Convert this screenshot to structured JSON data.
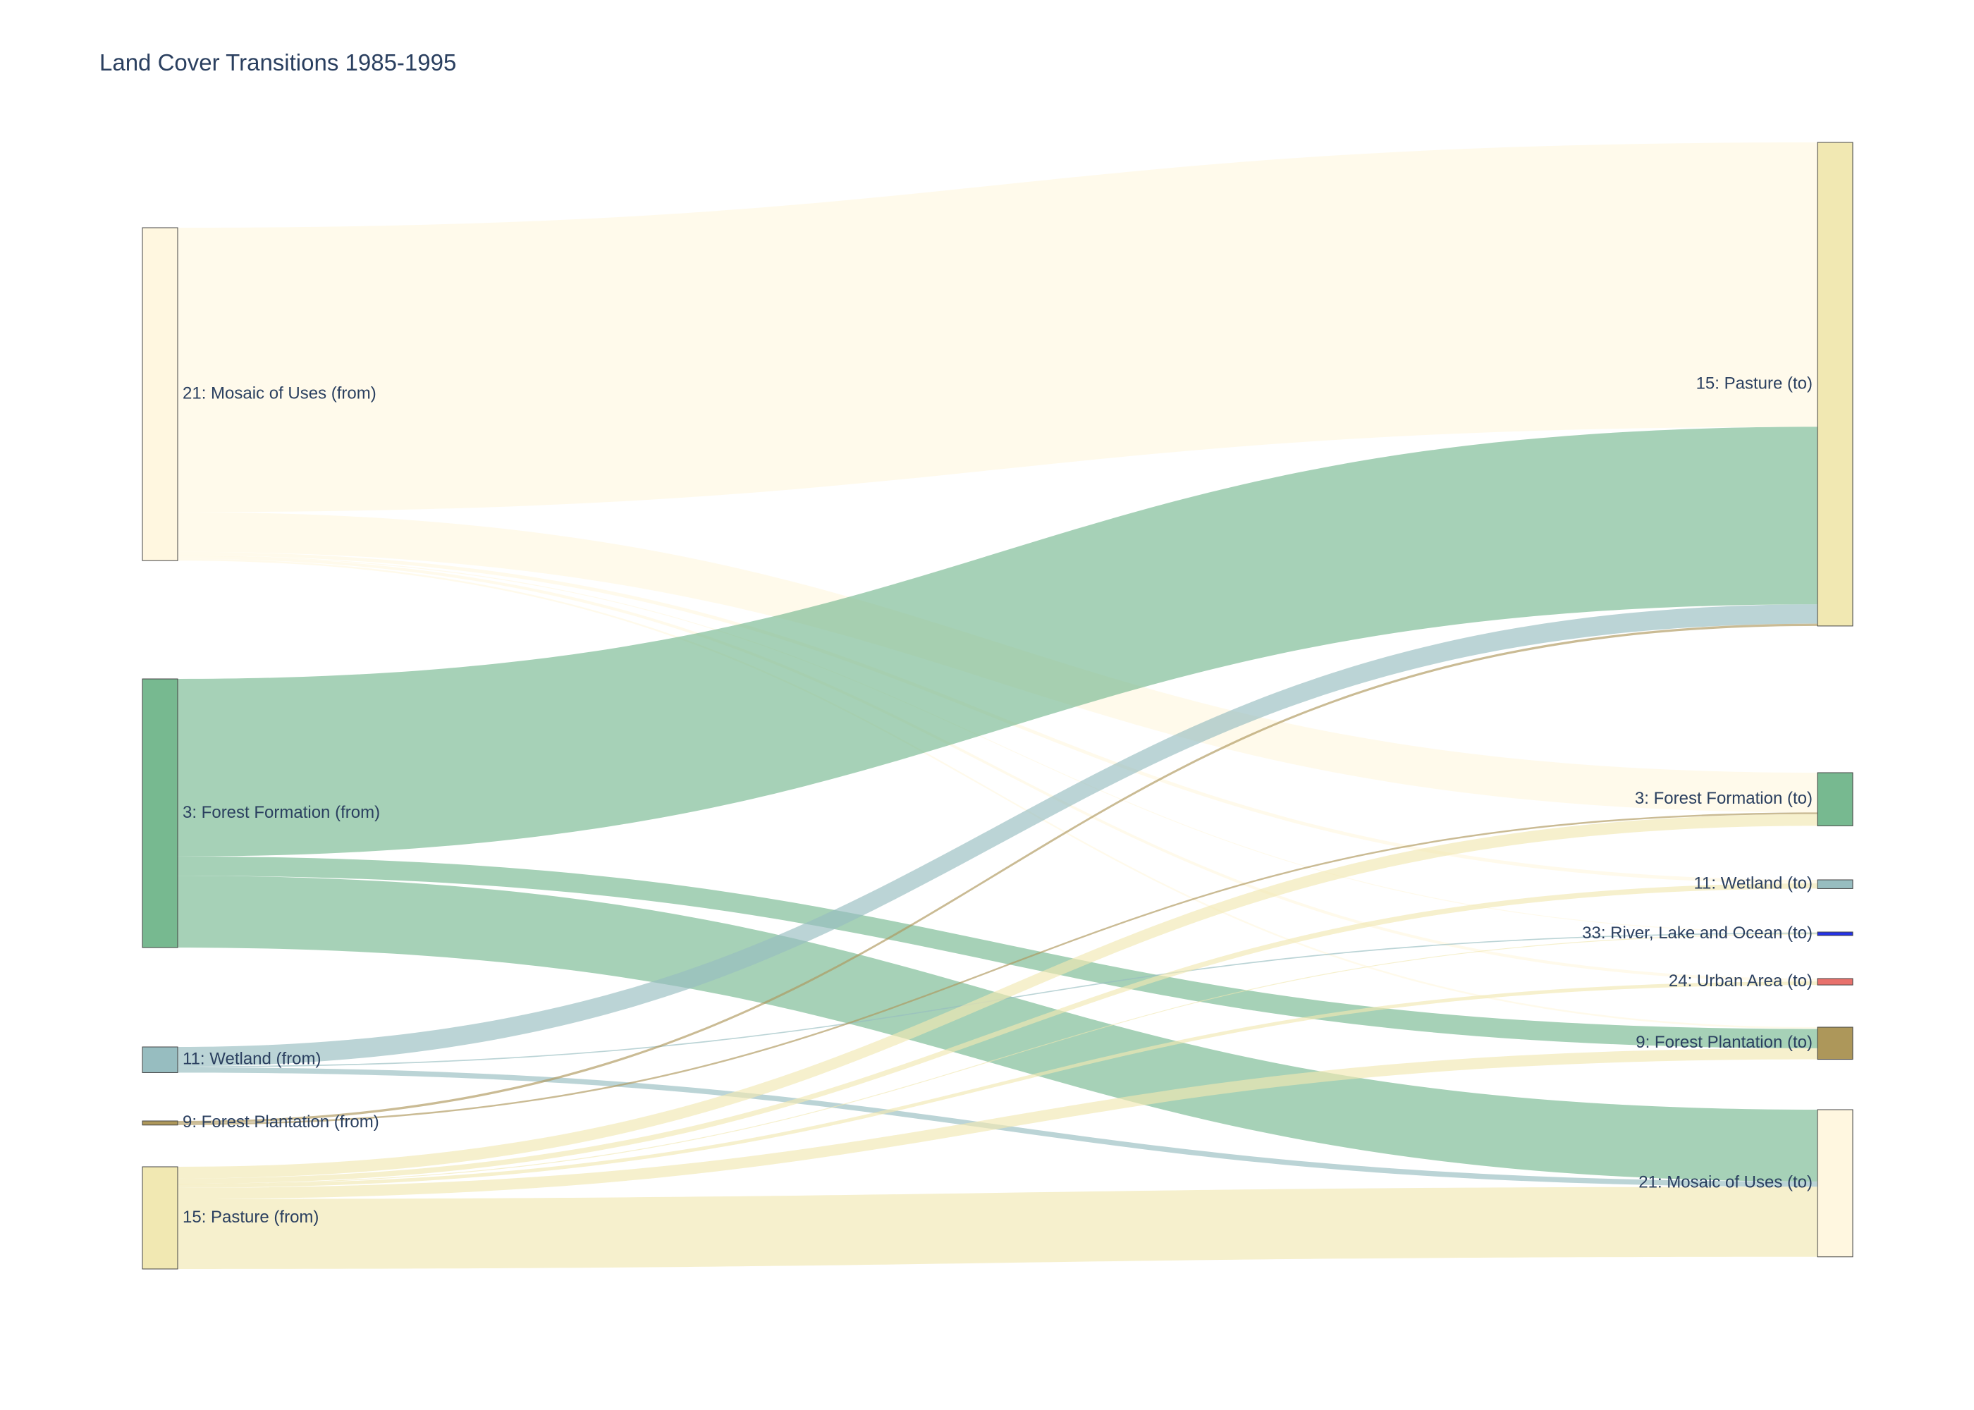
{
  "chart_data": {
    "type": "sankey",
    "title": "Land Cover Transitions 1985-1995",
    "sources": [
      {
        "id": "s21",
        "label": "21: Mosaic of Uses (from)",
        "color": "#fff7e0"
      },
      {
        "id": "s3",
        "label": "3: Forest Formation (from)",
        "color": "#77b990"
      },
      {
        "id": "s11",
        "label": "11: Wetland (from)",
        "color": "#97bdc0"
      },
      {
        "id": "s9",
        "label": "9: Forest Plantation (from)",
        "color": "#ad975a"
      },
      {
        "id": "s15",
        "label": "15: Pasture (from)",
        "color": "#f1e8b2"
      }
    ],
    "targets": [
      {
        "id": "t15",
        "label": "15: Pasture (to)",
        "color": "#f1e8b2"
      },
      {
        "id": "t3",
        "label": "3: Forest Formation (to)",
        "color": "#77b990"
      },
      {
        "id": "t11",
        "label": "11: Wetland (to)",
        "color": "#97bdc0"
      },
      {
        "id": "t33",
        "label": "33: River, Lake and Ocean (to)",
        "color": "#2532e4"
      },
      {
        "id": "t24",
        "label": "24: Urban Area (to)",
        "color": "#e8716c"
      },
      {
        "id": "t9",
        "label": "9: Forest Plantation (to)",
        "color": "#ad975a"
      },
      {
        "id": "t21",
        "label": "21: Mosaic of Uses (to)",
        "color": "#fff7e0"
      }
    ],
    "links": [
      {
        "source": "s21",
        "target": "t15",
        "value": 487
      },
      {
        "source": "s21",
        "target": "t3",
        "value": 68
      },
      {
        "source": "s21",
        "target": "t11",
        "value": 6
      },
      {
        "source": "s21",
        "target": "t33",
        "value": 1
      },
      {
        "source": "s21",
        "target": "t24",
        "value": 5
      },
      {
        "source": "s21",
        "target": "t9",
        "value": 3
      },
      {
        "source": "s3",
        "target": "t15",
        "value": 304
      },
      {
        "source": "s3",
        "target": "t9",
        "value": 33
      },
      {
        "source": "s3",
        "target": "t21",
        "value": 123
      },
      {
        "source": "s11",
        "target": "t15",
        "value": 33
      },
      {
        "source": "s11",
        "target": "t33",
        "value": 2
      },
      {
        "source": "s11",
        "target": "t21",
        "value": 9
      },
      {
        "source": "s9",
        "target": "t15",
        "value": 4
      },
      {
        "source": "s9",
        "target": "t3",
        "value": 3
      },
      {
        "source": "s15",
        "target": "t3",
        "value": 20
      },
      {
        "source": "s15",
        "target": "t11",
        "value": 9
      },
      {
        "source": "s15",
        "target": "t33",
        "value": 1
      },
      {
        "source": "s15",
        "target": "t24",
        "value": 6
      },
      {
        "source": "s15",
        "target": "t9",
        "value": 19
      },
      {
        "source": "s15",
        "target": "t21",
        "value": 120
      }
    ]
  }
}
